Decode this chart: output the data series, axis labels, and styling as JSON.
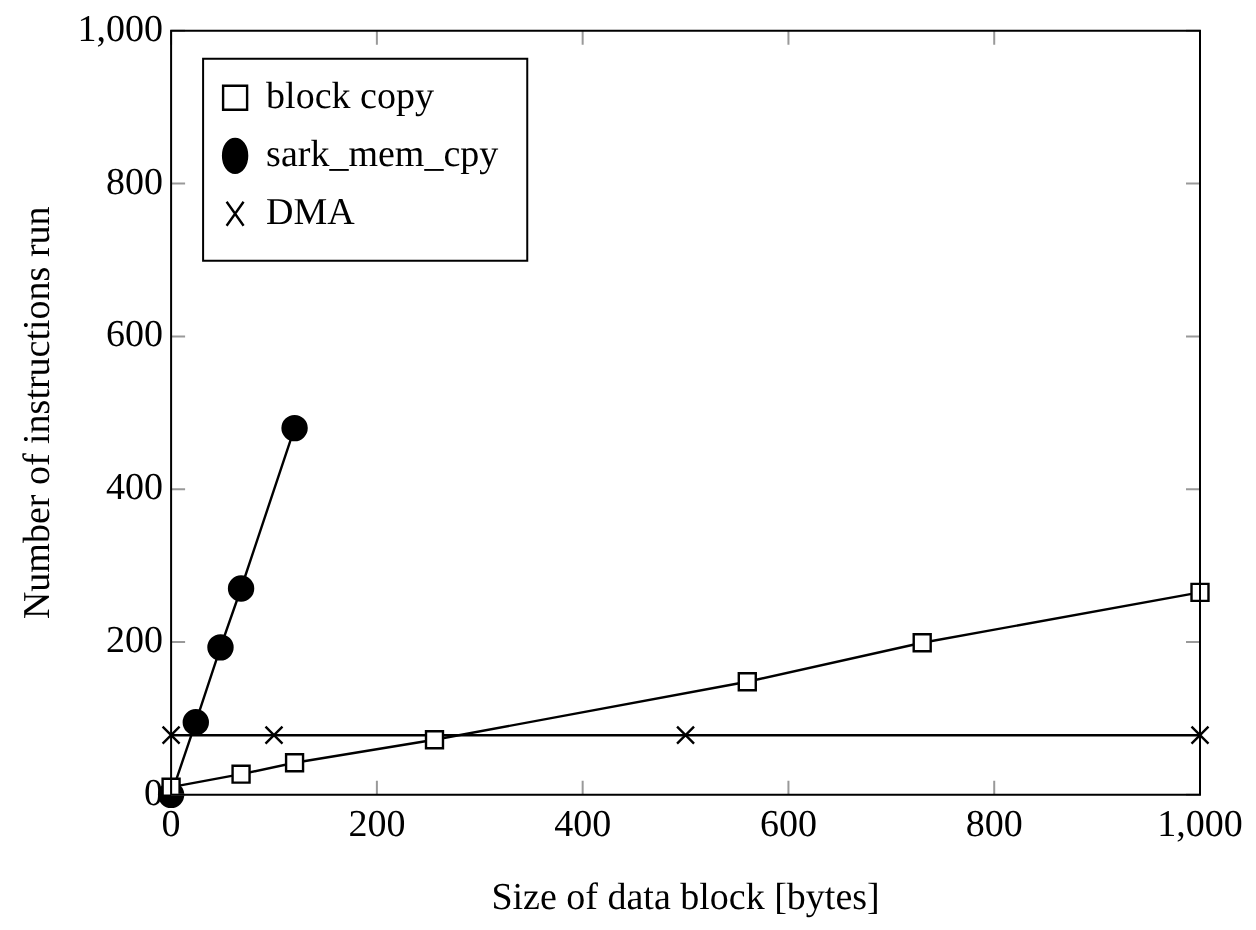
{
  "chart_data": {
    "type": "line",
    "xlabel": "Size of data block [bytes]",
    "ylabel": "Number of instructions run",
    "xlim": [
      0,
      1000
    ],
    "xticks": [
      0,
      200,
      400,
      600,
      800,
      {
        "value": 1000,
        "label": "1,000"
      }
    ],
    "ylim": [
      0,
      1000
    ],
    "yticks": [
      0,
      200,
      400,
      600,
      800,
      {
        "value": 1000,
        "label": "1,000"
      }
    ],
    "grid": false,
    "legend": "top left",
    "series": [
      {
        "name": "block copy",
        "color": "#000000",
        "marker": "square",
        "x": [
          0,
          68,
          120,
          256,
          560,
          730,
          1000
        ],
        "values": [
          10,
          27,
          42,
          72,
          148,
          199,
          265
        ]
      },
      {
        "name": "sark_mem_cpy",
        "color": "#000000",
        "marker": "circle",
        "x": [
          0,
          24,
          48,
          68,
          120
        ],
        "values": [
          0,
          95,
          193,
          270,
          480
        ]
      },
      {
        "name": "DMA",
        "color": "#000000",
        "marker": "cross",
        "x": [
          0,
          100,
          500,
          1000
        ],
        "values": [
          78,
          78,
          78,
          78
        ]
      }
    ]
  }
}
